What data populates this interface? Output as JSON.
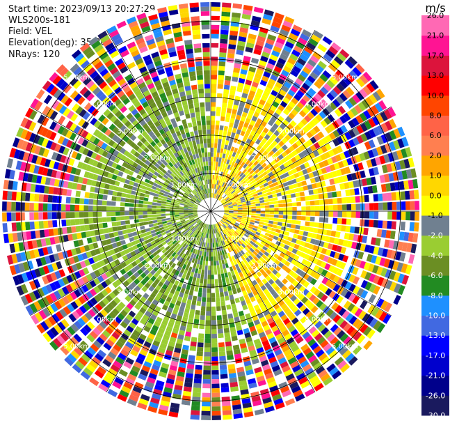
{
  "info": {
    "start_time": "Start time: 2023/09/13 20:27:29",
    "instrument": "WLS200s-181",
    "field": "Field: VEL",
    "elevation": "Elevation(deg): 35.30",
    "nrays": "NRays: 120"
  },
  "chart_data": {
    "type": "heatmap",
    "projection": "polar-ppi",
    "field": "VEL",
    "units_label": "m/s",
    "nrays": 120,
    "max_range_km": 5.5,
    "range_rings_km": [
      1.0,
      2.0,
      3.0,
      4.0,
      5.0
    ],
    "range_ring_labels": [
      "1.00km",
      "2.00km",
      "3.00km",
      "4.00km",
      "5.00km"
    ],
    "colorbar": {
      "colors": [
        "#1a1a5e",
        "#00008b",
        "#0000cd",
        "#0000ff",
        "#4169e1",
        "#1e90ff",
        "#228b22",
        "#6b8e23",
        "#9acd32",
        "#708090",
        "#ffff00",
        "#ffd700",
        "#ffa500",
        "#ff7f50",
        "#ff6347",
        "#ff4500",
        "#ff0000",
        "#dc143c",
        "#ff1493",
        "#ff69b4"
      ],
      "tick_labels": [
        "-30.0",
        "-26.0",
        "-21.0",
        "-17.0",
        "-13.0",
        "-10.0",
        "-8.0",
        "-6.0",
        "-4.0",
        "-2.0",
        "-1.0",
        "0.0",
        "1.0",
        "2.0",
        "6.0",
        "8.0",
        "10.0",
        "13.0",
        "17.0",
        "21.0",
        "26.0"
      ]
    },
    "pattern": {
      "toward_color_sector_deg": [
        0,
        160
      ],
      "away_color_sector_deg": [
        160,
        360
      ],
      "noise_beyond_km": 3.8
    }
  }
}
